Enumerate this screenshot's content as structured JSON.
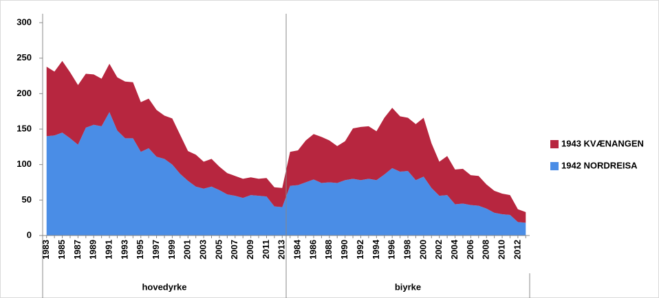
{
  "chart_data": {
    "type": "stacked-area",
    "groups": [
      {
        "label": "hovedyrke",
        "categories": [
          "1983",
          null,
          "1985",
          null,
          "1987",
          null,
          "1989",
          null,
          "1991",
          null,
          "1993",
          null,
          "1995",
          null,
          "1997",
          null,
          "1999",
          null,
          "2001",
          null,
          "2003",
          null,
          "2005",
          null,
          "2007",
          null,
          "2009",
          null,
          "2011",
          null,
          "2013"
        ]
      },
      {
        "label": "biyrke",
        "categories": [
          null,
          "1984",
          null,
          "1986",
          null,
          "1988",
          null,
          "1990",
          null,
          "1992",
          null,
          "1994",
          null,
          "1996",
          null,
          "1998",
          null,
          "2000",
          null,
          "2002",
          null,
          "2004",
          null,
          "2006",
          null,
          "2008",
          null,
          "2010",
          null,
          "2012",
          null
        ]
      }
    ],
    "series": [
      {
        "name": "1942 NORDREISA",
        "color": "#4a8de6",
        "values": [
          140,
          141,
          145,
          137,
          128,
          152,
          156,
          154,
          174,
          148,
          137,
          137,
          118,
          123,
          111,
          108,
          100,
          87,
          77,
          69,
          66,
          69,
          64,
          58,
          56,
          53,
          57,
          56,
          55,
          41,
          40,
          70,
          71,
          75,
          79,
          74,
          75,
          74,
          78,
          80,
          78,
          80,
          78,
          86,
          95,
          90,
          91,
          78,
          83,
          67,
          56,
          57,
          44,
          45,
          43,
          42,
          38,
          32,
          30,
          29,
          19,
          18
        ]
      },
      {
        "name": "1943 KVÆNANGEN",
        "color": "#b7263f",
        "values": [
          98,
          90,
          101,
          93,
          84,
          76,
          71,
          67,
          68,
          75,
          80,
          79,
          70,
          70,
          66,
          61,
          65,
          55,
          42,
          45,
          38,
          39,
          33,
          30,
          28,
          27,
          25,
          24,
          26,
          27,
          27,
          48,
          49,
          59,
          64,
          65,
          59,
          52,
          55,
          71,
          75,
          74,
          69,
          80,
          85,
          78,
          75,
          79,
          83,
          63,
          48,
          55,
          49,
          49,
          42,
          42,
          34,
          31,
          29,
          28,
          18,
          15
        ]
      }
    ],
    "ylim": [
      0,
      300
    ],
    "yticks": [
      0,
      50,
      100,
      150,
      200,
      250,
      300
    ],
    "legend": "right"
  }
}
